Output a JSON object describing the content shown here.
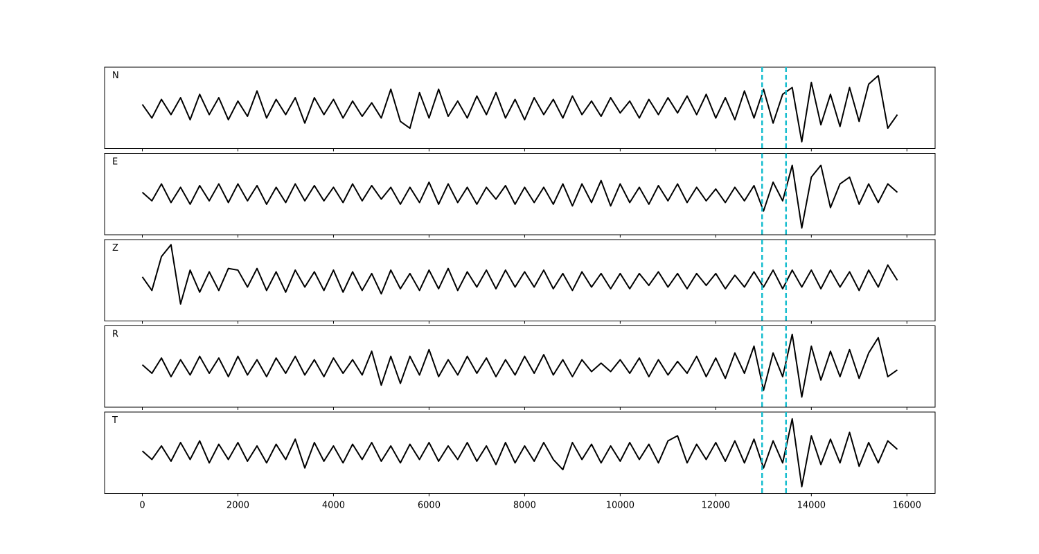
{
  "chart_data": {
    "type": "line",
    "x": [
      0,
      200,
      400,
      600,
      800,
      1000,
      1200,
      1400,
      1600,
      1800,
      2000,
      2200,
      2400,
      2600,
      2800,
      3000,
      3200,
      3400,
      3600,
      3800,
      4000,
      4200,
      4400,
      4600,
      4800,
      5000,
      5200,
      5400,
      5600,
      5800,
      6000,
      6200,
      6400,
      6600,
      6800,
      7000,
      7200,
      7400,
      7600,
      7800,
      8000,
      8200,
      8400,
      8600,
      8800,
      9000,
      9200,
      9400,
      9600,
      9800,
      10000,
      10200,
      10400,
      10600,
      10800,
      11000,
      11200,
      11400,
      11600,
      11800,
      12000,
      12200,
      12400,
      12600,
      12800,
      13000,
      13200,
      13400,
      13600,
      13800,
      14000,
      14200,
      14400,
      14600,
      14800,
      15000,
      15200,
      15400,
      15600,
      15800
    ],
    "xlim": [
      -790,
      16590
    ],
    "xticks": [
      0,
      2000,
      4000,
      6000,
      8000,
      10000,
      12000,
      14000,
      16000
    ],
    "ylim": [
      -1.2,
      1.2
    ],
    "series": [
      {
        "name": "N",
        "color": "#000000",
        "values": [
          0.1,
          -0.3,
          0.25,
          -0.2,
          0.3,
          -0.35,
          0.4,
          -0.2,
          0.3,
          -0.35,
          0.2,
          -0.25,
          0.5,
          -0.3,
          0.25,
          -0.2,
          0.3,
          -0.45,
          0.3,
          -0.2,
          0.25,
          -0.3,
          0.2,
          -0.25,
          0.15,
          -0.3,
          0.55,
          -0.4,
          -0.6,
          0.45,
          -0.3,
          0.55,
          -0.25,
          0.2,
          -0.3,
          0.35,
          -0.2,
          0.45,
          -0.3,
          0.25,
          -0.35,
          0.3,
          -0.2,
          0.25,
          -0.3,
          0.35,
          -0.2,
          0.2,
          -0.25,
          0.3,
          -0.15,
          0.2,
          -0.3,
          0.25,
          -0.2,
          0.3,
          -0.15,
          0.35,
          -0.2,
          0.4,
          -0.3,
          0.3,
          -0.35,
          0.5,
          -0.3,
          0.55,
          -0.45,
          0.4,
          0.6,
          -1.0,
          0.75,
          -0.5,
          0.4,
          -0.55,
          0.6,
          -0.4,
          0.7,
          0.95,
          -0.6,
          -0.2
        ]
      },
      {
        "name": "E",
        "color": "#000000",
        "values": [
          0.05,
          -0.2,
          0.3,
          -0.25,
          0.2,
          -0.3,
          0.25,
          -0.2,
          0.3,
          -0.25,
          0.3,
          -0.2,
          0.25,
          -0.3,
          0.2,
          -0.25,
          0.3,
          -0.2,
          0.25,
          -0.2,
          0.2,
          -0.25,
          0.3,
          -0.2,
          0.25,
          -0.15,
          0.2,
          -0.3,
          0.2,
          -0.25,
          0.35,
          -0.3,
          0.3,
          -0.25,
          0.2,
          -0.3,
          0.2,
          -0.15,
          0.25,
          -0.3,
          0.2,
          -0.25,
          0.2,
          -0.3,
          0.3,
          -0.35,
          0.3,
          -0.25,
          0.4,
          -0.35,
          0.3,
          -0.25,
          0.2,
          -0.3,
          0.25,
          -0.2,
          0.3,
          -0.25,
          0.2,
          -0.2,
          0.15,
          -0.25,
          0.2,
          -0.2,
          0.25,
          -0.5,
          0.35,
          -0.2,
          0.85,
          -1.0,
          0.5,
          0.85,
          -0.4,
          0.3,
          0.5,
          -0.3,
          0.3,
          -0.25,
          0.3,
          0.05
        ]
      },
      {
        "name": "Z",
        "color": "#000000",
        "values": [
          0.1,
          -0.3,
          0.7,
          1.05,
          -0.7,
          0.3,
          -0.35,
          0.25,
          -0.3,
          0.35,
          0.3,
          -0.2,
          0.35,
          -0.3,
          0.25,
          -0.35,
          0.3,
          -0.2,
          0.25,
          -0.3,
          0.3,
          -0.35,
          0.25,
          -0.3,
          0.2,
          -0.4,
          0.3,
          -0.25,
          0.2,
          -0.3,
          0.3,
          -0.25,
          0.35,
          -0.3,
          0.25,
          -0.2,
          0.3,
          -0.25,
          0.3,
          -0.2,
          0.25,
          -0.2,
          0.3,
          -0.25,
          0.2,
          -0.3,
          0.25,
          -0.2,
          0.2,
          -0.25,
          0.2,
          -0.25,
          0.2,
          -0.15,
          0.25,
          -0.2,
          0.2,
          -0.25,
          0.2,
          -0.15,
          0.2,
          -0.25,
          0.15,
          -0.2,
          0.25,
          -0.2,
          0.3,
          -0.25,
          0.3,
          -0.2,
          0.3,
          -0.25,
          0.3,
          -0.2,
          0.25,
          -0.3,
          0.3,
          -0.2,
          0.45,
          0.0
        ]
      },
      {
        "name": "R",
        "color": "#000000",
        "values": [
          0.05,
          -0.2,
          0.25,
          -0.3,
          0.2,
          -0.25,
          0.3,
          -0.2,
          0.25,
          -0.3,
          0.3,
          -0.25,
          0.2,
          -0.3,
          0.25,
          -0.2,
          0.3,
          -0.25,
          0.2,
          -0.3,
          0.25,
          -0.2,
          0.2,
          -0.25,
          0.45,
          -0.55,
          0.3,
          -0.5,
          0.3,
          -0.25,
          0.5,
          -0.3,
          0.2,
          -0.25,
          0.3,
          -0.2,
          0.25,
          -0.3,
          0.2,
          -0.25,
          0.3,
          -0.2,
          0.35,
          -0.25,
          0.2,
          -0.3,
          0.2,
          -0.15,
          0.1,
          -0.15,
          0.2,
          -0.2,
          0.25,
          -0.3,
          0.2,
          -0.25,
          0.15,
          -0.2,
          0.3,
          -0.3,
          0.25,
          -0.35,
          0.4,
          -0.2,
          0.6,
          -0.7,
          0.4,
          -0.3,
          0.95,
          -0.9,
          0.6,
          -0.4,
          0.45,
          -0.3,
          0.5,
          -0.35,
          0.4,
          0.85,
          -0.3,
          -0.1
        ]
      },
      {
        "name": "T",
        "color": "#000000",
        "values": [
          0.05,
          -0.2,
          0.2,
          -0.25,
          0.3,
          -0.2,
          0.35,
          -0.3,
          0.25,
          -0.2,
          0.3,
          -0.25,
          0.2,
          -0.3,
          0.25,
          -0.2,
          0.4,
          -0.45,
          0.3,
          -0.25,
          0.2,
          -0.3,
          0.25,
          -0.2,
          0.3,
          -0.25,
          0.2,
          -0.3,
          0.25,
          -0.2,
          0.3,
          -0.25,
          0.2,
          -0.2,
          0.3,
          -0.25,
          0.2,
          -0.35,
          0.3,
          -0.3,
          0.2,
          -0.25,
          0.3,
          -0.2,
          -0.5,
          0.3,
          -0.2,
          0.25,
          -0.3,
          0.2,
          -0.25,
          0.3,
          -0.2,
          0.25,
          -0.3,
          0.35,
          0.5,
          -0.3,
          0.25,
          -0.2,
          0.3,
          -0.25,
          0.35,
          -0.3,
          0.4,
          -0.45,
          0.35,
          -0.3,
          1.0,
          -1.0,
          0.5,
          -0.35,
          0.4,
          -0.3,
          0.6,
          -0.4,
          0.3,
          -0.3,
          0.35,
          0.1
        ]
      }
    ],
    "markers": {
      "x": [
        12970,
        13470
      ],
      "color": "#17becf"
    }
  }
}
